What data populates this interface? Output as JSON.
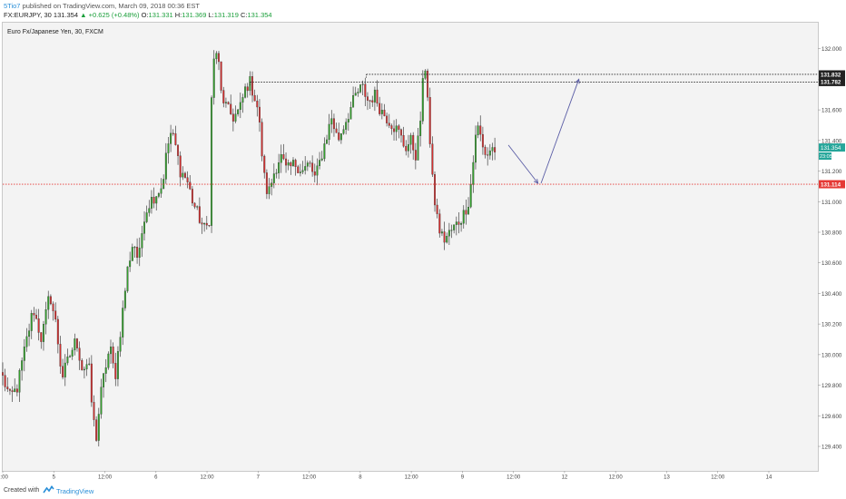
{
  "header": {
    "author": "5Tio7",
    "published": "published on TradingView.com, March 09, 2018 00:36 EST",
    "symbol_line": "FX:EURJPY, 30",
    "last": "131.354",
    "change": "+0.625 (+0.48%)",
    "o_label": "O:",
    "o_value": "131.331",
    "h_label": "H:",
    "h_value": "131.369",
    "l_label": "L:",
    "l_value": "131.319",
    "c_label": "C:",
    "c_value": "131.354"
  },
  "footer": {
    "created_with": "Created with",
    "brand": "TradingView"
  },
  "chart_data": {
    "type": "candlestick",
    "title": "Euro Fx/Japanese Yen, 30, FXCM",
    "ylim": [
      129.24,
      132.17
    ],
    "y_ticks": [
      "132.000",
      "131.800",
      "131.600",
      "131.400",
      "131.200",
      "131.000",
      "130.800",
      "130.600",
      "130.400",
      "130.200",
      "130.000",
      "129.800",
      "129.600",
      "129.400"
    ],
    "x_ticks": [
      {
        "label": "2:00",
        "x": 0.0
      },
      {
        "label": "5",
        "x": 0.5
      },
      {
        "label": "12:00",
        "x": 1.0
      },
      {
        "label": "6",
        "x": 1.5
      },
      {
        "label": "12:00",
        "x": 2.0
      },
      {
        "label": "7",
        "x": 2.5
      },
      {
        "label": "12:00",
        "x": 3.0
      },
      {
        "label": "8",
        "x": 3.5
      },
      {
        "label": "12:00",
        "x": 4.0
      },
      {
        "label": "9",
        "x": 4.5
      },
      {
        "label": "12:00",
        "x": 5.0
      },
      {
        "label": "12",
        "x": 5.5
      },
      {
        "label": "12:00",
        "x": 6.0
      },
      {
        "label": "13",
        "x": 6.5
      },
      {
        "label": "12:00",
        "x": 7.0
      },
      {
        "label": "14",
        "x": 7.5
      }
    ],
    "xlim": [
      0.0,
      7.98
    ],
    "price_path": [
      [
        0.0,
        129.85
      ],
      [
        0.07,
        129.72
      ],
      [
        0.14,
        129.78
      ],
      [
        0.22,
        130.05
      ],
      [
        0.3,
        130.3
      ],
      [
        0.38,
        130.1
      ],
      [
        0.46,
        130.4
      ],
      [
        0.52,
        130.2
      ],
      [
        0.58,
        129.85
      ],
      [
        0.66,
        130.0
      ],
      [
        0.72,
        130.1
      ],
      [
        0.78,
        129.9
      ],
      [
        0.84,
        129.95
      ],
      [
        0.88,
        129.6
      ],
      [
        0.92,
        129.45
      ],
      [
        0.95,
        129.7
      ],
      [
        1.0,
        129.9
      ],
      [
        1.05,
        130.05
      ],
      [
        1.1,
        129.85
      ],
      [
        1.16,
        130.2
      ],
      [
        1.22,
        130.55
      ],
      [
        1.28,
        130.75
      ],
      [
        1.33,
        130.6
      ],
      [
        1.38,
        130.9
      ],
      [
        1.44,
        131.0
      ],
      [
        1.5,
        131.05
      ],
      [
        1.56,
        131.1
      ],
      [
        1.6,
        131.3
      ],
      [
        1.64,
        131.45
      ],
      [
        1.68,
        131.4
      ],
      [
        1.74,
        131.2
      ],
      [
        1.8,
        131.15
      ],
      [
        1.86,
        131.0
      ],
      [
        1.92,
        130.9
      ],
      [
        1.97,
        130.82
      ],
      [
        2.02,
        130.85
      ],
      [
        2.04,
        131.6
      ],
      [
        2.06,
        131.9
      ],
      [
        2.1,
        132.0
      ],
      [
        2.14,
        131.7
      ],
      [
        2.2,
        131.6
      ],
      [
        2.26,
        131.55
      ],
      [
        2.32,
        131.6
      ],
      [
        2.38,
        131.75
      ],
      [
        2.42,
        131.78
      ],
      [
        2.46,
        131.7
      ],
      [
        2.5,
        131.6
      ],
      [
        2.54,
        131.3
      ],
      [
        2.57,
        131.1
      ],
      [
        2.6,
        131.05
      ],
      [
        2.66,
        131.2
      ],
      [
        2.72,
        131.3
      ],
      [
        2.78,
        131.2
      ],
      [
        2.86,
        131.25
      ],
      [
        2.94,
        131.2
      ],
      [
        3.0,
        131.25
      ],
      [
        3.06,
        131.15
      ],
      [
        3.12,
        131.3
      ],
      [
        3.18,
        131.45
      ],
      [
        3.22,
        131.55
      ],
      [
        3.28,
        131.4
      ],
      [
        3.34,
        131.5
      ],
      [
        3.4,
        131.6
      ],
      [
        3.46,
        131.7
      ],
      [
        3.52,
        131.75
      ],
      [
        3.58,
        131.65
      ],
      [
        3.64,
        131.7
      ],
      [
        3.7,
        131.6
      ],
      [
        3.76,
        131.55
      ],
      [
        3.82,
        131.5
      ],
      [
        3.88,
        131.45
      ],
      [
        3.94,
        131.35
      ],
      [
        4.0,
        131.4
      ],
      [
        4.04,
        131.3
      ],
      [
        4.08,
        131.45
      ],
      [
        4.11,
        131.75
      ],
      [
        4.14,
        131.9
      ],
      [
        4.16,
        131.7
      ],
      [
        4.18,
        131.4
      ],
      [
        4.21,
        131.1
      ],
      [
        4.24,
        130.95
      ],
      [
        4.28,
        130.8
      ],
      [
        4.32,
        130.75
      ],
      [
        4.38,
        130.8
      ],
      [
        4.44,
        130.85
      ],
      [
        4.5,
        130.9
      ],
      [
        4.56,
        131.0
      ],
      [
        4.6,
        131.2
      ],
      [
        4.62,
        131.4
      ],
      [
        4.64,
        131.5
      ],
      [
        4.67,
        131.45
      ],
      [
        4.7,
        131.35
      ],
      [
        4.74,
        131.3
      ],
      [
        4.78,
        131.35
      ],
      [
        4.82,
        131.34
      ]
    ],
    "last_price": {
      "value": 131.354,
      "label": "131.354",
      "sub_label": "23:05",
      "color": "#26a69a"
    },
    "hlines": [
      {
        "value": 131.832,
        "label": "131.832",
        "x_start": 3.56,
        "style": "dotted",
        "color": "#222222"
      },
      {
        "value": 131.782,
        "label": "131.782",
        "x_start": 2.42,
        "style": "dotted",
        "color": "#222222"
      },
      {
        "value": 131.114,
        "label": "131.114",
        "x_start": 0.0,
        "style": "dotted",
        "color": "#e53935"
      }
    ],
    "arrows": [
      {
        "points": [
          [
            4.95,
            131.37
          ],
          [
            5.24,
            131.12
          ]
        ],
        "color": "#5b5ea6"
      },
      {
        "points": [
          [
            5.27,
            131.12
          ],
          [
            5.64,
            131.8
          ]
        ],
        "color": "#5b5ea6"
      }
    ],
    "colors": {
      "up": "#33a02c",
      "down": "#d32f2f",
      "wick": "#444444"
    }
  }
}
